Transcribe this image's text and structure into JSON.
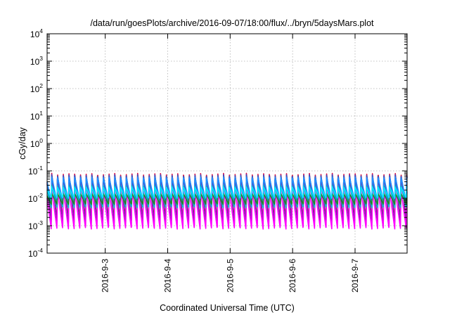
{
  "chart_data": {
    "type": "line",
    "title": "/data/run/goesPlots/archive/2016-09-07/18:00/flux/../bryn/5daysMars.plot",
    "xlabel": "Coordinated Universal Time (UTC)",
    "ylabel": "cGy/day",
    "xlim": [
      "2016-09-02T01:40",
      "2016-09-07T20:00"
    ],
    "ylim": [
      0.0001,
      10000
    ],
    "yscale": "log",
    "grid": true,
    "legend": "none",
    "x_ticks": [
      {
        "label": "2016-9-3",
        "value": "2016-09-03"
      },
      {
        "label": "2016-9-4",
        "value": "2016-09-04"
      },
      {
        "label": "2016-9-5",
        "value": "2016-09-05"
      },
      {
        "label": "2016-9-6",
        "value": "2016-09-06"
      },
      {
        "label": "2016-9-7",
        "value": "2016-09-07"
      }
    ],
    "y_ticks": [
      {
        "base": "10",
        "exp": "4",
        "value": 10000
      },
      {
        "base": "10",
        "exp": "3",
        "value": 1000
      },
      {
        "base": "10",
        "exp": "2",
        "value": 100
      },
      {
        "base": "10",
        "exp": "1",
        "value": 10
      },
      {
        "base": "10",
        "exp": "0",
        "value": 1
      },
      {
        "base": "10",
        "exp": "-1",
        "value": 0.1
      },
      {
        "base": "10",
        "exp": "-2",
        "value": 0.01
      },
      {
        "base": "10",
        "exp": "-3",
        "value": 0.001
      },
      {
        "base": "10",
        "exp": "-4",
        "value": 0.0001
      }
    ],
    "pattern": {
      "period_hours": 2.2,
      "phase_hours": 0.6,
      "description_source": "sawtooth, sharp rise then exponential decay"
    },
    "series": [
      {
        "color": "#dc143c",
        "peak": 0.082,
        "trough": 0.0016
      },
      {
        "color": "#7b1fa2",
        "peak": 0.075,
        "trough": 0.0013
      },
      {
        "color": "#ff00ff",
        "peak": 0.02,
        "trough": 0.00075
      },
      {
        "color": "#3f51b5",
        "peak": 0.07,
        "trough": 0.005
      },
      {
        "color": "#1e90ff",
        "peak": 0.06,
        "trough": 0.008
      },
      {
        "color": "#00bcd4",
        "peak": 0.03,
        "trough": 0.0045
      },
      {
        "color": "#228b22",
        "peak": 0.015,
        "trough": 0.006
      },
      {
        "color": "#00e5ff",
        "peak": 0.026,
        "trough": 0.01
      }
    ]
  }
}
